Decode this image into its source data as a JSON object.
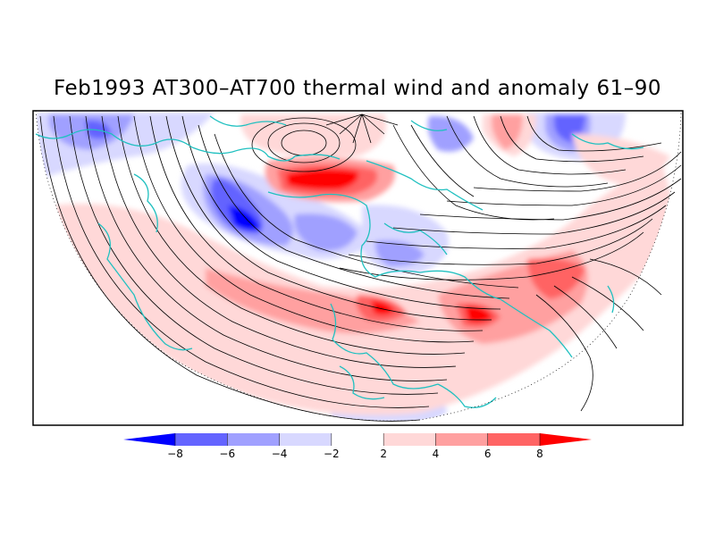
{
  "title": "Feb1993 AT300–AT700 thermal wind and anomaly 61–90",
  "colors": {
    "frame": "#000000",
    "coastline": "#20c0c0",
    "streamline": "#000000",
    "background": "#ffffff"
  },
  "colorbar": {
    "bins": [
      {
        "color": "#0000ff"
      },
      {
        "color": "#6464ff"
      },
      {
        "color": "#a0a0ff"
      },
      {
        "color": "#d8d8ff"
      },
      {
        "color": "#ffffff"
      },
      {
        "color": "#ffd8d8"
      },
      {
        "color": "#ffa0a0"
      },
      {
        "color": "#ff6464"
      },
      {
        "color": "#ff0000"
      }
    ],
    "labels": [
      "−8",
      "−6",
      "−4",
      "−2",
      "2",
      "4",
      "6",
      "8"
    ]
  }
}
